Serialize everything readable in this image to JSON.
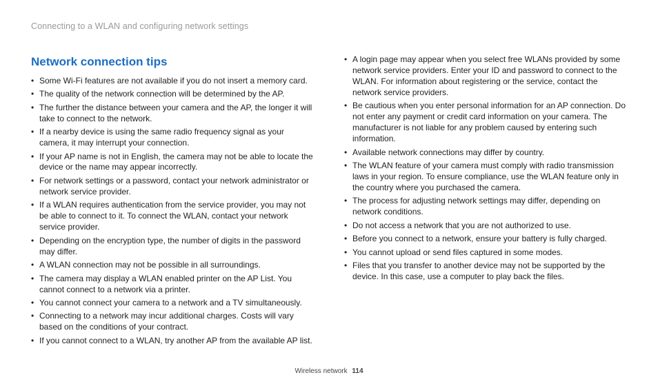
{
  "breadcrumb": "Connecting to a WLAN and configuring network settings",
  "heading": "Network connection tips",
  "left_items": [
    "Some Wi-Fi features are not available if you do not insert a memory card.",
    "The quality of the network connection will be determined by the AP.",
    "The further the distance between your camera and the AP, the longer it will take to connect to the network.",
    "If a nearby device is using the same radio frequency signal as your camera, it may interrupt your connection.",
    "If your AP name is not in English, the camera may not be able to locate the device or the name may appear incorrectly.",
    "For network settings or a password, contact your network administrator or network service provider.",
    "If a WLAN requires authentication from the service provider, you may not be able to connect to it. To connect the WLAN, contact your network service provider.",
    "Depending on the encryption type, the number of digits in the password may differ.",
    "A WLAN connection may not be possible in all surroundings.",
    "The camera may display a WLAN enabled printer on the AP List. You cannot connect to a network via a printer.",
    "You cannot connect your camera to a network and a TV simultaneously.",
    "Connecting to a network may incur additional charges. Costs will vary based on the conditions of your contract.",
    "If you cannot connect to a WLAN, try another AP from the available AP list."
  ],
  "right_items": [
    "A login page may appear when you select free WLANs provided by some network service providers. Enter your ID and password to connect to the WLAN. For information about registering or the service, contact the network service providers.",
    "Be cautious when you enter personal information for an AP connection. Do not enter any payment or credit card information on your camera. The manufacturer is not liable for any problem caused by entering such information.",
    "Available network connections may differ by country.",
    "The WLAN feature of your camera must comply with radio transmission laws in your region. To ensure compliance, use the WLAN feature only in the country where you purchased the camera.",
    "The process for adjusting network settings may differ, depending on network conditions.",
    "Do not access a network that you are not authorized to use.",
    "Before you connect to a network, ensure your battery is fully charged.",
    "You cannot upload or send files captured in some modes.",
    "Files that you transfer to another device may not be supported by the device. In this case, use a computer to play back the files."
  ],
  "footer_section": "Wireless network",
  "footer_page": "114"
}
